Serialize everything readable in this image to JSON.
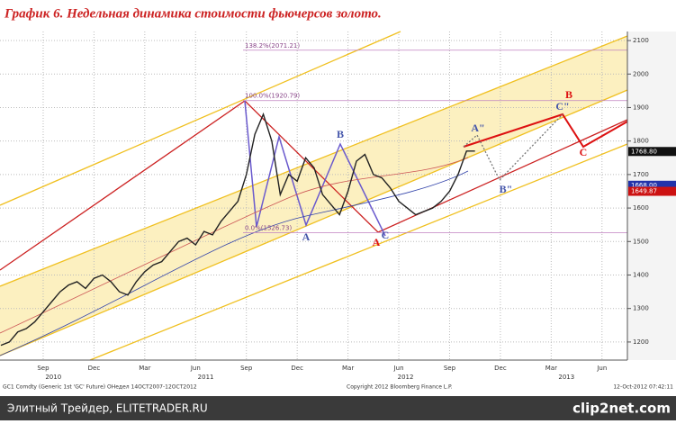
{
  "header": {
    "title": "График 6.   Недельная динамика стоимости фьючерсов золото."
  },
  "chart_data": {
    "type": "line",
    "color": "#222222",
    "x": [
      -2.5,
      -2,
      -1.5,
      -1,
      -0.5,
      0,
      0.5,
      1,
      1.5,
      2,
      2.5,
      3,
      3.5,
      4,
      4.5,
      5,
      5.5,
      6,
      6.5,
      7,
      7.5,
      8,
      8.5,
      9,
      9.5,
      10,
      10.5,
      11,
      11.5,
      12,
      12.5,
      13,
      13.5,
      14,
      14.5,
      15,
      15.5,
      16,
      16.5,
      17,
      17.5,
      18,
      18.5,
      19,
      19.5,
      20,
      20.5,
      21,
      21.5,
      22,
      22.5,
      23,
      23.5,
      24,
      24.5,
      25,
      25.5
    ],
    "values": [
      1190,
      1200,
      1230,
      1240,
      1260,
      1290,
      1320,
      1350,
      1370,
      1380,
      1360,
      1390,
      1400,
      1380,
      1350,
      1340,
      1380,
      1410,
      1430,
      1440,
      1470,
      1500,
      1510,
      1490,
      1530,
      1520,
      1560,
      1590,
      1620,
      1700,
      1820,
      1880,
      1800,
      1640,
      1700,
      1680,
      1750,
      1720,
      1640,
      1610,
      1580,
      1650,
      1740,
      1760,
      1700,
      1690,
      1660,
      1620,
      1600,
      1580,
      1590,
      1600,
      1620,
      1650,
      1700,
      1770,
      1770
    ],
    "xlim": [
      -2.55,
      34.5
    ],
    "ylim": [
      1146,
      2127
    ],
    "xticks": [
      {
        "value": 0,
        "label": "Sep"
      },
      {
        "value": 3,
        "label": "Dec"
      },
      {
        "value": 6,
        "label": "Mar"
      },
      {
        "value": 9,
        "label": "Jun"
      },
      {
        "value": 12,
        "label": "Sep"
      },
      {
        "value": 15,
        "label": "Dec"
      },
      {
        "value": 18,
        "label": "Mar"
      },
      {
        "value": 21,
        "label": "Jun"
      },
      {
        "value": 24,
        "label": "Sep"
      },
      {
        "value": 27,
        "label": "Dec"
      },
      {
        "value": 30,
        "label": "Mar"
      },
      {
        "value": 33,
        "label": "Jun"
      }
    ],
    "year_labels": [
      {
        "value": 0.6,
        "label": "2010"
      },
      {
        "value": 9.6,
        "label": "2011"
      },
      {
        "value": 21.4,
        "label": "2012"
      },
      {
        "value": 30.9,
        "label": "2013"
      }
    ],
    "yticks": [
      1200,
      1300,
      1400,
      1500,
      1600,
      1700,
      1800,
      1900,
      2000,
      2100
    ],
    "grid": true,
    "fib_levels": [
      {
        "value": 2071.21,
        "label": "138.2%(2071.21)"
      },
      {
        "value": 1920.79,
        "label": "100.0%(1920.79)"
      },
      {
        "value": 1526.73,
        "label": "0.0%(1526.73)"
      }
    ],
    "price_tags": [
      {
        "value": 1768.8,
        "label": "1768.80",
        "color": "#111111"
      },
      {
        "value": 1668,
        "label": "1668.00",
        "color": "#2233aa"
      },
      {
        "value": 1649.87,
        "label": "1649.87",
        "color": "#cc1111"
      }
    ],
    "annotations": [
      "A",
      "B",
      "C",
      "A",
      "B",
      "C",
      "A\"",
      "B\"",
      "C\""
    ]
  },
  "footer": {
    "source": "GC1 Comdty (Generic 1st 'GC' Future) ОНедел 14OCT2007-12OCT2012",
    "copyright": "Copyright 2012 Bloomberg Finance L.P.",
    "timestamp": "12-Oct-2012 07:42:11",
    "bar_text": "Элитный Трейдер, ELITETRADER.RU",
    "logo": "clip2net.com"
  }
}
